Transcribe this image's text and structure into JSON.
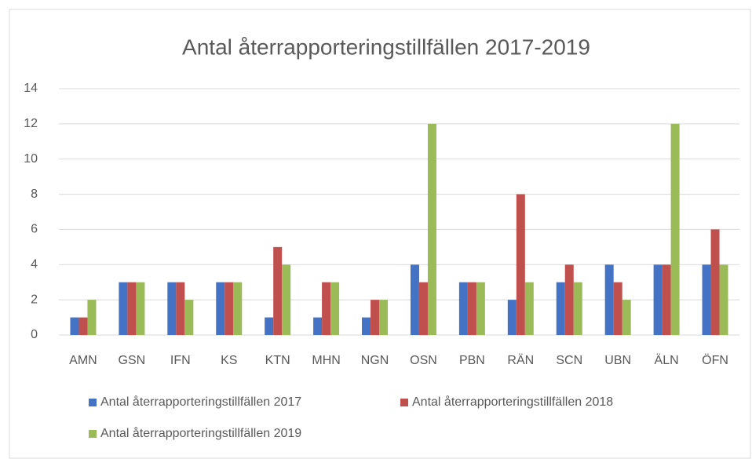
{
  "chart_data": {
    "type": "bar",
    "title": "Antal återrapporteringstillfällen 2017-2019",
    "categories": [
      "AMN",
      "GSN",
      "IFN",
      "KS",
      "KTN",
      "MHN",
      "NGN",
      "OSN",
      "PBN",
      "RÄN",
      "SCN",
      "UBN",
      "ÄLN",
      "ÖFN"
    ],
    "series": [
      {
        "name": "Antal återrapporteringstillfällen 2017",
        "color": "#4472c4",
        "values": [
          1,
          3,
          3,
          3,
          1,
          1,
          1,
          4,
          3,
          2,
          3,
          4,
          4,
          4
        ]
      },
      {
        "name": "Antal återrapporteringstillfällen 2018",
        "color": "#c0504d",
        "values": [
          1,
          3,
          3,
          3,
          5,
          3,
          2,
          3,
          3,
          8,
          4,
          3,
          4,
          6
        ]
      },
      {
        "name": "Antal återrapporteringstillfällen 2019",
        "color": "#9bbb59",
        "values": [
          2,
          3,
          2,
          3,
          4,
          3,
          2,
          12,
          3,
          3,
          3,
          2,
          12,
          4
        ]
      }
    ],
    "ylim": [
      0,
      14
    ],
    "yticks": [
      0,
      2,
      4,
      6,
      8,
      10,
      12,
      14
    ],
    "grid": true,
    "legend": "bottom"
  }
}
